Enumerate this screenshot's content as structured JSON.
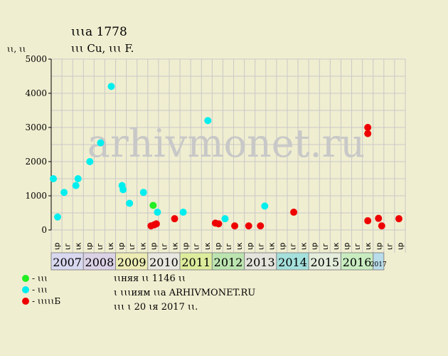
{
  "header": {
    "title": "ꙇꙇꙇa 1778",
    "subtitle": "ꙇꙇꙇ Cu, ꙇꙇꙇ F.",
    "y_unit": "ꙇꙇ, ꙇꙇ"
  },
  "colors": {
    "background": "#f0eed0",
    "grid": "#c8c8c8",
    "green": "#22ee22",
    "cyan": "#00eeee",
    "red": "#ee0000",
    "watermark": "#c8c8c8"
  },
  "watermark": "arhivmonet.ru",
  "legend": [
    {
      "label": "- ꙇꙇꙇ",
      "color": "#22ee22"
    },
    {
      "label": "- ꙇꙇꙇ",
      "color": "#00eeee"
    },
    {
      "label": "- ꙇꙇꙇꙇꙇБ",
      "color": "#ee0000"
    }
  ],
  "footer_notes": [
    "ꙇꙇняя ꙇꙇ 1146 ꙇꙇ",
    "ꙇ ꙇꙇꙇиям ꙇꙇa ARHIVMONET.RU",
    "ꙇꙇꙇ ꙇ 20 ꙇя 2017 ꙇꙇ."
  ],
  "chart_data": {
    "type": "scatter",
    "ylim": [
      0,
      5000
    ],
    "y_ticks": [
      0,
      1000,
      2000,
      3000,
      4000,
      5000
    ],
    "grid": true,
    "x_slots": 33,
    "slot_labels": [
      "ꙇр",
      "ꙇг",
      "ꙇк",
      "ꙇр",
      "ꙇг",
      "ꙇк",
      "ꙇр",
      "ꙇг",
      "ꙇк",
      "ꙇр",
      "ꙇг",
      "ꙇк",
      "ꙇр",
      "ꙇг",
      "ꙇк",
      "ꙇр",
      "ꙇг",
      "ꙇк",
      "ꙇр",
      "ꙇг",
      "ꙇк",
      "ꙇр",
      "ꙇг",
      "ꙇк",
      "ꙇр",
      "ꙇг",
      "ꙇк",
      "ꙇр",
      "ꙇг",
      "ꙇк",
      "ꙇр",
      "ꙇг",
      "ꙇр"
    ],
    "years": [
      {
        "label": "2007",
        "start": 0,
        "span": 3,
        "color": "#d8d8f0"
      },
      {
        "label": "2008",
        "start": 3,
        "span": 3,
        "color": "#dcd2e6"
      },
      {
        "label": "2009",
        "start": 6,
        "span": 3,
        "color": "#ececb4"
      },
      {
        "label": "2010",
        "start": 9,
        "span": 3,
        "color": "#e8e8e0"
      },
      {
        "label": "2011",
        "start": 12,
        "span": 3,
        "color": "#dcec9c"
      },
      {
        "label": "2012",
        "start": 15,
        "span": 3,
        "color": "#bce4b0"
      },
      {
        "label": "2013",
        "start": 18,
        "span": 3,
        "color": "#e4e4dc"
      },
      {
        "label": "2014",
        "start": 21,
        "span": 3,
        "color": "#a4e0dc"
      },
      {
        "label": "2015",
        "start": 24,
        "span": 3,
        "color": "#e4ecdc"
      },
      {
        "label": "2016",
        "start": 27,
        "span": 3,
        "color": "#c8ecc0"
      },
      {
        "label": "2017",
        "start": 30,
        "span": 1,
        "color": "#b8dcea"
      }
    ],
    "series": [
      {
        "color": "#00eeee",
        "points": [
          [
            0.2,
            1500
          ],
          [
            0.6,
            380
          ],
          [
            1.2,
            1100
          ],
          [
            2.3,
            1300
          ],
          [
            2.5,
            1500
          ],
          [
            3.6,
            2000
          ],
          [
            4.6,
            2550
          ],
          [
            5.6,
            4200
          ],
          [
            6.6,
            1300
          ],
          [
            6.7,
            1180
          ],
          [
            7.3,
            780
          ],
          [
            8.6,
            1100
          ],
          [
            9.9,
            520
          ],
          [
            12.3,
            520
          ],
          [
            14.6,
            3200
          ],
          [
            16.2,
            330
          ],
          [
            19.9,
            700
          ]
        ]
      },
      {
        "color": "#22ee22",
        "points": [
          [
            9.5,
            720
          ]
        ]
      },
      {
        "color": "#ee0000",
        "points": [
          [
            9.3,
            120
          ],
          [
            9.6,
            150
          ],
          [
            9.8,
            180
          ],
          [
            11.5,
            330
          ],
          [
            15.3,
            200
          ],
          [
            15.6,
            180
          ],
          [
            17.1,
            120
          ],
          [
            18.4,
            120
          ],
          [
            19.5,
            120
          ],
          [
            22.6,
            520
          ],
          [
            29.5,
            3000
          ],
          [
            29.5,
            2820
          ],
          [
            29.5,
            270
          ],
          [
            30.5,
            340
          ],
          [
            30.8,
            120
          ],
          [
            32.4,
            330
          ]
        ]
      }
    ]
  }
}
